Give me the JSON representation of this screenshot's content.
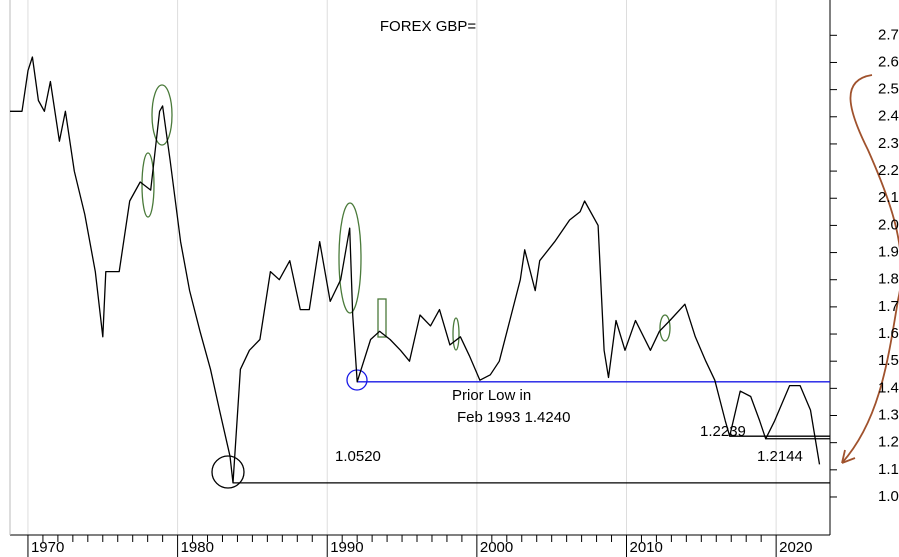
{
  "chart_data": {
    "type": "line",
    "title": "FOREX GBP=",
    "x": [
      1968.8,
      1969.6,
      1970.0,
      1970.3,
      1970.7,
      1971.1,
      1971.5,
      1972.1,
      1972.5,
      1973.1,
      1973.8,
      1974.5,
      1975.0,
      1975.2,
      1976.1,
      1976.8,
      1977.5,
      1978.2,
      1978.8,
      1979.0,
      1979.5,
      1980.2,
      1980.8,
      1981.5,
      1982.2,
      1982.8,
      1983.5,
      1983.7,
      1984.2,
      1984.8,
      1985.5,
      1986.2,
      1986.8,
      1987.5,
      1988.2,
      1988.8,
      1989.5,
      1990.2,
      1990.9,
      1991.5,
      1991.7,
      1992.0,
      1992.9,
      1993.5,
      1994.2,
      1994.9,
      1995.5,
      1996.2,
      1996.9,
      1997.5,
      1998.2,
      1998.9,
      1999.5,
      2000.2,
      2000.9,
      2001.5,
      2002.2,
      2002.9,
      2003.2,
      2003.9,
      2004.2,
      2005.2,
      2006.2,
      2006.9,
      2007.2,
      2008.1,
      2008.5,
      2008.8,
      2009.3,
      2009.9,
      2010.6,
      2011.6,
      2012.2,
      2012.9,
      2013.9,
      2014.6,
      2015.3,
      2015.9,
      2016.6,
      2016.9,
      2017.6,
      2018.3,
      2018.9,
      2019.3,
      2019.9,
      2020.9,
      2021.6,
      2022.3,
      2022.9
    ],
    "series": [
      {
        "name": "GBP=",
        "color": "#000000",
        "values": [
          2.42,
          2.42,
          2.57,
          2.62,
          2.46,
          2.42,
          2.53,
          2.31,
          2.42,
          2.2,
          2.04,
          1.83,
          1.59,
          1.83,
          1.83,
          2.09,
          2.16,
          2.13,
          2.42,
          2.44,
          2.24,
          1.94,
          1.76,
          1.61,
          1.47,
          1.32,
          1.15,
          1.052,
          1.47,
          1.54,
          1.58,
          1.83,
          1.8,
          1.87,
          1.69,
          1.69,
          1.94,
          1.72,
          1.8,
          1.99,
          1.67,
          1.424,
          1.58,
          1.61,
          1.58,
          1.54,
          1.5,
          1.67,
          1.63,
          1.69,
          1.56,
          1.59,
          1.52,
          1.43,
          1.45,
          1.5,
          1.65,
          1.8,
          1.91,
          1.76,
          1.87,
          1.94,
          2.02,
          2.05,
          2.09,
          2.0,
          1.54,
          1.44,
          1.65,
          1.54,
          1.65,
          1.54,
          1.61,
          1.65,
          1.71,
          1.59,
          1.5,
          1.43,
          1.28,
          1.2239,
          1.39,
          1.37,
          1.28,
          1.2144,
          1.28,
          1.41,
          1.41,
          1.32,
          1.12
        ]
      }
    ],
    "xlim": [
      1968.8,
      2023.6
    ],
    "xticks": [
      1970,
      1980,
      1990,
      2000,
      2010,
      2020
    ],
    "ylim": [
      0.86,
      2.83
    ],
    "yticks": [
      {
        "value": 1.0,
        "label": "1.0"
      },
      1.1,
      1.2,
      1.3,
      1.4,
      1.5,
      1.6,
      1.7,
      1.8,
      1.9,
      {
        "value": 2.0,
        "label": "2.0"
      },
      2.1,
      2.2,
      2.3,
      2.4,
      2.5,
      2.6,
      2.7
    ],
    "grid": true,
    "reference_lines": [
      {
        "value": 1.424,
        "start": 1992.0,
        "color": "#1a1ae6",
        "note": "Prior Low in",
        "label": "Feb 1993 1.4240"
      },
      {
        "value": 1.052,
        "start": 1983.7,
        "color": "#000000",
        "label": "1.0520"
      },
      {
        "value": 1.2239,
        "start": 2016.9,
        "color": "#000000",
        "label": "1.2239"
      },
      {
        "value": 1.2144,
        "start": 2019.3,
        "color": "#000000",
        "label": "1.2144"
      }
    ]
  }
}
